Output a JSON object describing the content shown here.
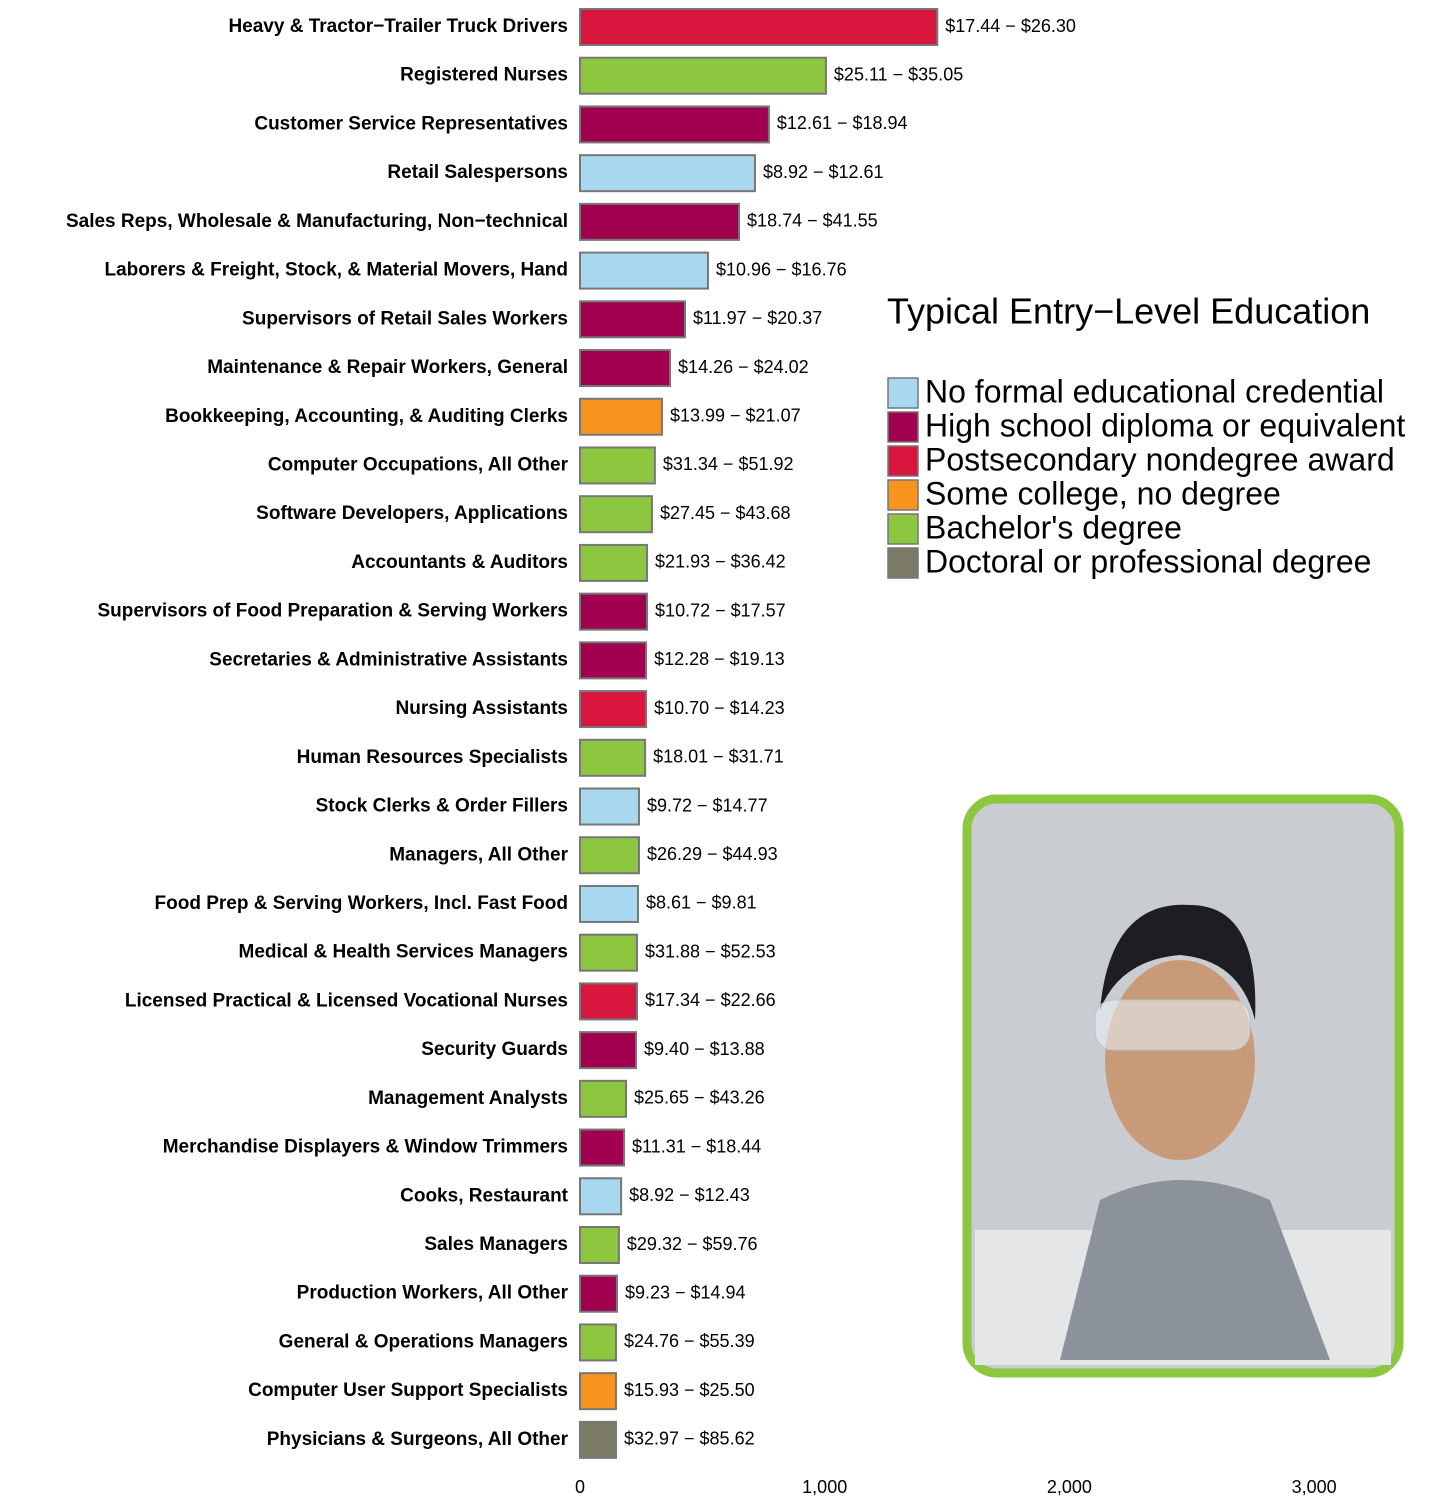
{
  "chart_data": {
    "type": "bar",
    "orientation": "horizontal",
    "categories": [
      "Heavy & Tractor−Trailer Truck Drivers",
      "Registered Nurses",
      "Customer Service Representatives",
      "Retail Salespersons",
      "Sales Reps, Wholesale & Manufacturing, Non−technical",
      "Laborers & Freight, Stock, & Material Movers, Hand",
      "Supervisors of Retail Sales Workers",
      "Maintenance & Repair Workers, General",
      "Bookkeeping, Accounting, & Auditing Clerks",
      "Computer Occupations, All Other",
      "Software Developers, Applications",
      "Accountants & Auditors",
      "Supervisors of Food Preparation & Serving Workers",
      "Secretaries & Administrative Assistants",
      "Nursing Assistants",
      "Human Resources Specialists",
      "Stock Clerks & Order Fillers",
      "Managers, All Other",
      "Food Prep & Serving Workers, Incl. Fast Food",
      "Medical & Health Services Managers",
      "Licensed Practical & Licensed Vocational Nurses",
      "Security Guards",
      "Management Analysts",
      "Merchandise Displayers & Window Trimmers",
      "Cooks, Restaurant",
      "Sales Managers",
      "Production Workers, All Other",
      "General & Operations Managers",
      "Computer User Support Specialists",
      "Physicians & Surgeons, All Other"
    ],
    "values": [
      1460,
      1005,
      772,
      715,
      650,
      523,
      429,
      368,
      335,
      306,
      294,
      274,
      274,
      270,
      270,
      266,
      241,
      241,
      237,
      233,
      233,
      229,
      188,
      180,
      168,
      159,
      151,
      147,
      147,
      147
    ],
    "annotations": [
      "$17.44 − $26.30",
      "$25.11 − $35.05",
      "$12.61 − $18.94",
      "$8.92 − $12.61",
      "$18.74 − $41.55",
      "$10.96 − $16.76",
      "$11.97 − $20.37",
      "$14.26 − $24.02",
      "$13.99 − $21.07",
      "$31.34 − $51.92",
      "$27.45 − $43.68",
      "$21.93 − $36.42",
      "$10.72 − $17.57",
      "$12.28 − $19.13",
      "$10.70 − $14.23",
      "$18.01 − $31.71",
      "$9.72 − $14.77",
      "$26.29 − $44.93",
      "$8.61 − $9.81",
      "$31.88 − $52.53",
      "$17.34 − $22.66",
      "$9.40 − $13.88",
      "$25.65 − $43.26",
      "$11.31 − $18.44",
      "$8.92 − $12.43",
      "$29.32 − $59.76",
      "$9.23 − $14.94",
      "$24.76 − $55.39",
      "$15.93 − $25.50",
      "$32.97 − $85.62"
    ],
    "groups": [
      2,
      4,
      1,
      0,
      1,
      0,
      1,
      1,
      3,
      4,
      4,
      4,
      1,
      1,
      2,
      4,
      0,
      4,
      0,
      4,
      2,
      1,
      4,
      1,
      0,
      4,
      1,
      4,
      3,
      5
    ],
    "legend_title": "Typical Entry−Level Education",
    "legend": [
      {
        "name": "No formal educational credential",
        "color": "#a8d8f0"
      },
      {
        "name": "High school diploma or equivalent",
        "color": "#a0004e"
      },
      {
        "name": "Postsecondary nondegree award",
        "color": "#d8163e"
      },
      {
        "name": "Some college, no degree",
        "color": "#f7931e"
      },
      {
        "name": "Bachelor's degree",
        "color": "#8dc63f"
      },
      {
        "name": "Doctoral or professional degree",
        "color": "#7a7a66"
      }
    ],
    "xlim": [
      0,
      3400
    ],
    "xticks": [
      0,
      {
        "value": 1000,
        "label": "1,000"
      },
      {
        "value": 2000,
        "label": "2,000"
      },
      {
        "value": 3000,
        "label": "3,000"
      }
    ],
    "grid": false
  }
}
